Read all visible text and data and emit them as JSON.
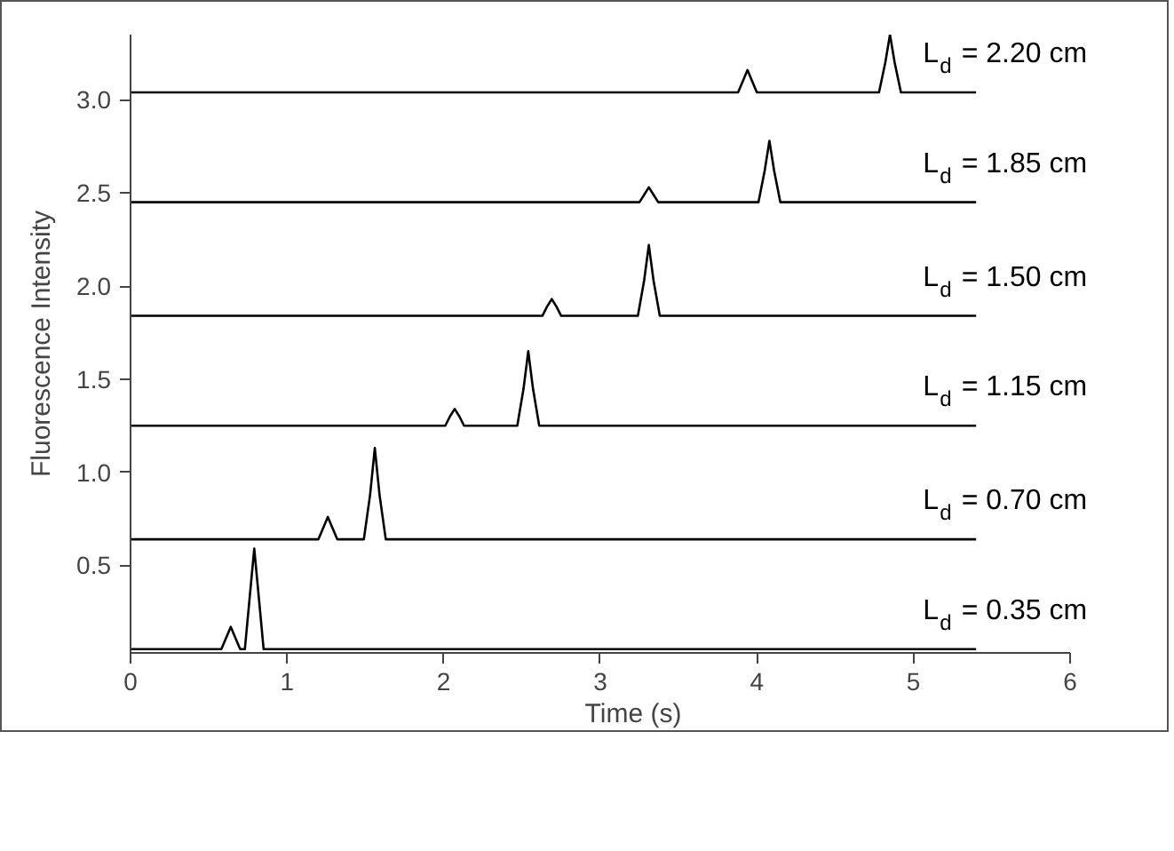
{
  "chart_data": {
    "type": "line",
    "xlabel": "Time (s)",
    "ylabel": "Fluorescence Intensity",
    "xlim": [
      0,
      6
    ],
    "ylim": [
      0.03,
      3.35
    ],
    "xticks": [
      0,
      1,
      2,
      3,
      4,
      5,
      6
    ],
    "yticks": [
      0.5,
      {
        "value": 1,
        "label": "1.0"
      },
      1.5,
      {
        "value": 2,
        "label": "2.0"
      },
      2.5,
      {
        "value": 3,
        "label": "3.0"
      }
    ],
    "grid": false,
    "legend": false,
    "marker": "none",
    "line_style": "solid",
    "series": [
      {
        "name": "L$_{d}$ = 2.20 cm",
        "color": "#000000",
        "x": [
          0,
          3.88,
          3.91,
          3.94,
          3.97,
          4.0,
          4.78,
          4.82,
          4.85,
          4.88,
          4.92,
          5.4
        ],
        "values": [
          3.04,
          3.04,
          3.1,
          3.16,
          3.1,
          3.04,
          3.04,
          3.2,
          3.35,
          3.2,
          3.04,
          3.04
        ]
      },
      {
        "name": "L$_{d}$ = 1.85 cm",
        "color": "#000000",
        "x": [
          0,
          3.25,
          3.28,
          3.31,
          3.34,
          3.37,
          4.01,
          4.05,
          4.08,
          4.11,
          4.15,
          5.4
        ],
        "values": [
          2.45,
          2.45,
          2.49,
          2.53,
          2.49,
          2.45,
          2.45,
          2.62,
          2.78,
          2.62,
          2.45,
          2.45
        ]
      },
      {
        "name": "L$_{d}$ = 1.50 cm",
        "color": "#000000",
        "x": [
          0,
          2.63,
          2.66,
          2.69,
          2.72,
          2.75,
          3.24,
          3.28,
          3.31,
          3.34,
          3.38,
          5.4
        ],
        "values": [
          1.84,
          1.84,
          1.89,
          1.93,
          1.89,
          1.84,
          1.84,
          2.03,
          2.22,
          2.03,
          1.84,
          1.84
        ]
      },
      {
        "name": "L$_{d}$ = 1.15 cm",
        "color": "#000000",
        "x": [
          0,
          2.01,
          2.04,
          2.07,
          2.1,
          2.13,
          2.47,
          2.51,
          2.54,
          2.57,
          2.61,
          5.4
        ],
        "values": [
          1.25,
          1.25,
          1.3,
          1.34,
          1.3,
          1.25,
          1.25,
          1.45,
          1.65,
          1.45,
          1.25,
          1.25
        ]
      },
      {
        "name": "L$_{d}$ = 0.70 cm",
        "color": "#000000",
        "x": [
          0,
          1.2,
          1.23,
          1.26,
          1.29,
          1.32,
          1.49,
          1.53,
          1.56,
          1.59,
          1.63,
          5.4
        ],
        "values": [
          0.64,
          0.64,
          0.7,
          0.76,
          0.7,
          0.64,
          0.64,
          0.88,
          1.13,
          0.88,
          0.64,
          0.64
        ]
      },
      {
        "name": "L$_{d}$ = 0.35 cm",
        "color": "#000000",
        "x": [
          0,
          0.58,
          0.61,
          0.64,
          0.67,
          0.7,
          0.73,
          0.76,
          0.79,
          0.82,
          0.85,
          5.4
        ],
        "values": [
          0.05,
          0.05,
          0.11,
          0.17,
          0.11,
          0.05,
          0.05,
          0.32,
          0.59,
          0.32,
          0.05,
          0.05
        ]
      }
    ]
  }
}
